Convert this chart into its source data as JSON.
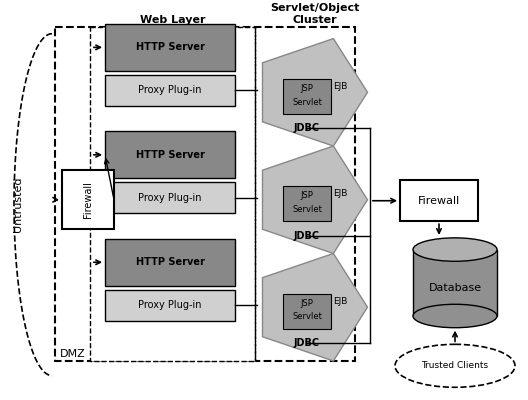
{
  "bg_color": "#ffffff",
  "web_layer_label": "Web Layer",
  "servlet_cluster_label": "Servlet/Object\nCluster",
  "dmz_label": "DMZ",
  "untrusted_label": "Untrusted",
  "dark_gray": "#888888",
  "light_gray": "#d0d0d0",
  "pent_color": "#c0c0c0",
  "jsp_box_color": "#888888",
  "db_color": "#909090",
  "db_top_color": "#b0b0b0"
}
